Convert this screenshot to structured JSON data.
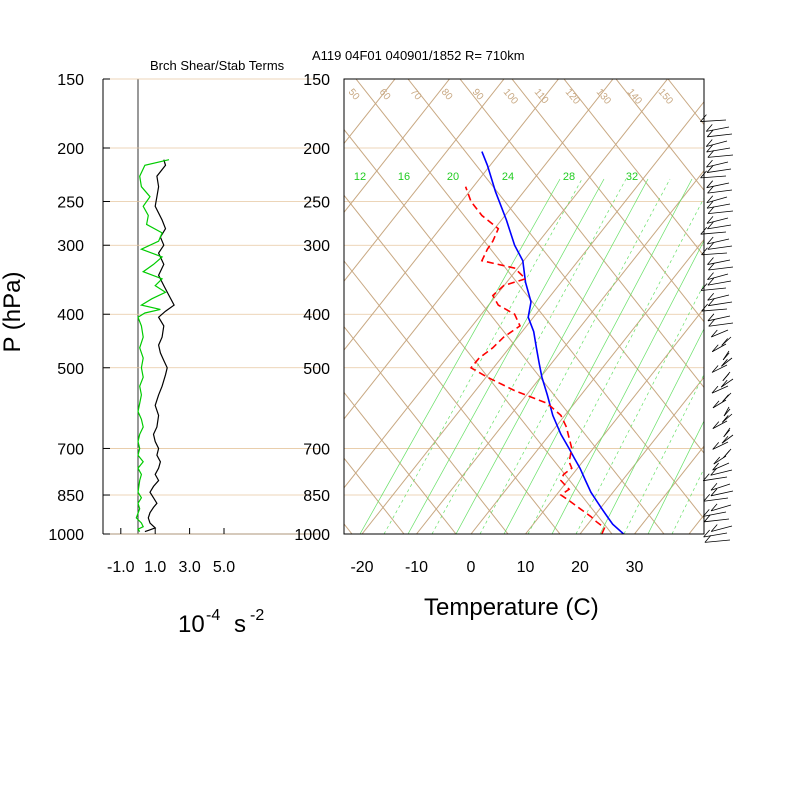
{
  "header": {
    "panel_title": "Brch Shear/Stab Terms",
    "sounding_id": "A119 04F01 040901/1852 R= 710km"
  },
  "left_panel": {
    "ylabel": "P (hPa)",
    "xticks": [
      "-1.0",
      "1.0",
      "3.0",
      "5.0"
    ],
    "unit_base": "10",
    "unit_exp1": "-4",
    "unit_s": "s",
    "unit_exp2": "-2"
  },
  "colors": {
    "shear": "#000000",
    "stability": "#00cc00",
    "temperature": "#0000ff",
    "dewpoint": "#ff0000",
    "isotherm": "#c8a882",
    "mixing_ratio": "#33dd33",
    "adiabat": "#88ee88"
  },
  "chart_data": [
    {
      "type": "line",
      "title": "Brch Shear/Stab Terms",
      "xlabel": "10^-4 s^-2",
      "ylabel": "P (hPa)",
      "xlim": [
        -2.0,
        5.0
      ],
      "ylim": [
        1000,
        150
      ],
      "xticks": [
        "-1.0",
        "1.0",
        "3.0",
        "5.0"
      ],
      "pressure_ticks": [
        150,
        200,
        250,
        300,
        400,
        500,
        700,
        850,
        1000
      ],
      "series": [
        {
          "color": "#000000",
          "points": [
            [
              0.4,
              990
            ],
            [
              0.6,
              985
            ],
            [
              1.0,
              975
            ],
            [
              0.7,
              955
            ],
            [
              0.6,
              935
            ],
            [
              0.7,
              915
            ],
            [
              0.9,
              895
            ],
            [
              1.1,
              880
            ],
            [
              0.9,
              860
            ],
            [
              0.7,
              840
            ],
            [
              0.9,
              820
            ],
            [
              1.2,
              800
            ],
            [
              1.0,
              780
            ],
            [
              1.2,
              760
            ],
            [
              1.3,
              740
            ],
            [
              1.1,
              720
            ],
            [
              1.2,
              700
            ],
            [
              1.0,
              680
            ],
            [
              0.9,
              660
            ],
            [
              1.1,
              640
            ],
            [
              1.2,
              610
            ],
            [
              1.0,
              585
            ],
            [
              1.2,
              560
            ],
            [
              1.4,
              540
            ],
            [
              1.6,
              515
            ],
            [
              1.7,
              500
            ],
            [
              1.5,
              485
            ],
            [
              1.3,
              470
            ],
            [
              1.2,
              455
            ],
            [
              1.4,
              440
            ],
            [
              1.5,
              420
            ],
            [
              1.2,
              405
            ],
            [
              1.6,
              395
            ],
            [
              2.1,
              385
            ],
            [
              1.8,
              370
            ],
            [
              1.5,
              355
            ],
            [
              1.2,
              340
            ],
            [
              1.5,
              325
            ],
            [
              1.2,
              310
            ],
            [
              1.5,
              300
            ],
            [
              1.3,
              290
            ],
            [
              1.6,
              280
            ],
            [
              1.4,
              270
            ],
            [
              1.0,
              255
            ],
            [
              1.1,
              245
            ],
            [
              1.2,
              235
            ],
            [
              1.1,
              225
            ],
            [
              1.6,
              215
            ],
            [
              1.5,
              210
            ]
          ]
        },
        {
          "color": "#00cc00",
          "points": [
            [
              0.1,
              990
            ],
            [
              0.0,
              980
            ],
            [
              0.3,
              970
            ],
            [
              0.2,
              955
            ],
            [
              -0.1,
              935
            ],
            [
              0.1,
              900
            ],
            [
              0.0,
              880
            ],
            [
              0.2,
              860
            ],
            [
              0.0,
              840
            ],
            [
              0.1,
              800
            ],
            [
              0.2,
              780
            ],
            [
              0.0,
              760
            ],
            [
              0.3,
              740
            ],
            [
              0.0,
              720
            ],
            [
              0.1,
              700
            ],
            [
              0.0,
              680
            ],
            [
              0.1,
              660
            ],
            [
              0.3,
              640
            ],
            [
              0.2,
              620
            ],
            [
              0.0,
              600
            ],
            [
              0.1,
              580
            ],
            [
              0.2,
              560
            ],
            [
              0.1,
              540
            ],
            [
              0.3,
              520
            ],
            [
              0.2,
              500
            ],
            [
              0.3,
              480
            ],
            [
              0.1,
              460
            ],
            [
              0.3,
              440
            ],
            [
              0.2,
              420
            ],
            [
              0.0,
              405
            ],
            [
              0.4,
              398
            ],
            [
              1.3,
              392
            ],
            [
              0.2,
              385
            ],
            [
              0.8,
              375
            ],
            [
              1.6,
              365
            ],
            [
              1.0,
              355
            ],
            [
              1.4,
              345
            ],
            [
              0.3,
              335
            ],
            [
              0.9,
              325
            ],
            [
              1.4,
              315
            ],
            [
              0.2,
              305
            ],
            [
              1.2,
              295
            ],
            [
              1.4,
              285
            ],
            [
              0.5,
              275
            ],
            [
              0.6,
              265
            ],
            [
              0.3,
              255
            ],
            [
              0.7,
              245
            ],
            [
              0.2,
              235
            ],
            [
              0.1,
              225
            ],
            [
              0.4,
              215
            ],
            [
              1.8,
              210
            ]
          ]
        }
      ]
    },
    {
      "type": "line",
      "title": "A119 04F01 040901/1852 R= 710km",
      "xlabel": "Temperature (C)",
      "ylabel": "P (hPa)",
      "xlim": [
        -23,
        42
      ],
      "ylim": [
        1000,
        150
      ],
      "xticks": [
        -20,
        -10,
        0,
        10,
        20,
        30
      ],
      "pressure_ticks": [
        150,
        200,
        250,
        300,
        400,
        500,
        700,
        850,
        1000
      ],
      "mixing_ratio_labels": [
        "12",
        "16",
        "20",
        "24",
        "28",
        "32"
      ],
      "isotherm_labels": [
        "50",
        "60",
        "70",
        "80",
        "90",
        "100",
        "110",
        "120",
        "130",
        "140",
        "150"
      ],
      "series": [
        {
          "color": "#0000ff",
          "points": [
            [
              28,
              1000
            ],
            [
              26,
              960
            ],
            [
              25,
              930
            ],
            [
              24,
              900
            ],
            [
              23,
              870
            ],
            [
              22,
              840
            ],
            [
              21,
              800
            ],
            [
              20,
              760
            ],
            [
              19,
              730
            ],
            [
              18,
              700
            ],
            [
              16.5,
              660
            ],
            [
              15,
              610
            ],
            [
              14,
              560
            ],
            [
              13,
              520
            ],
            [
              12.5,
              490
            ],
            [
              12,
              460
            ],
            [
              11.5,
              430
            ],
            [
              10.5,
              405
            ],
            [
              11,
              380
            ],
            [
              10,
              350
            ],
            [
              9.5,
              320
            ],
            [
              8,
              300
            ],
            [
              6.5,
              270
            ],
            [
              4.5,
              240
            ],
            [
              3,
              215
            ],
            [
              2,
              203
            ]
          ]
        },
        {
          "color": "#ff0000",
          "points": [
            [
              24,
              1000
            ],
            [
              24.5,
              975
            ],
            [
              23,
              950
            ],
            [
              22,
              930
            ],
            [
              20,
              900
            ],
            [
              18,
              870
            ],
            [
              16.5,
              850
            ],
            [
              18,
              830
            ],
            [
              16.5,
              800
            ],
            [
              17,
              780
            ],
            [
              18.5,
              760
            ],
            [
              18,
              740
            ],
            [
              18.5,
              700
            ],
            [
              18,
              670
            ],
            [
              17.5,
              640
            ],
            [
              16.5,
              610
            ],
            [
              14,
              580
            ],
            [
              8,
              550
            ],
            [
              3,
              520
            ],
            [
              0,
              500
            ],
            [
              1.5,
              480
            ],
            [
              4,
              460
            ],
            [
              6,
              440
            ],
            [
              9,
              420
            ],
            [
              8,
              400
            ],
            [
              5,
              385
            ],
            [
              4,
              370
            ],
            [
              6,
              355
            ],
            [
              10,
              345
            ],
            [
              8,
              330
            ],
            [
              2,
              320
            ],
            [
              3,
              305
            ],
            [
              4,
              295
            ],
            [
              5,
              280
            ],
            [
              2,
              265
            ],
            [
              0,
              250
            ],
            [
              -1,
              235
            ]
          ]
        }
      ]
    }
  ]
}
